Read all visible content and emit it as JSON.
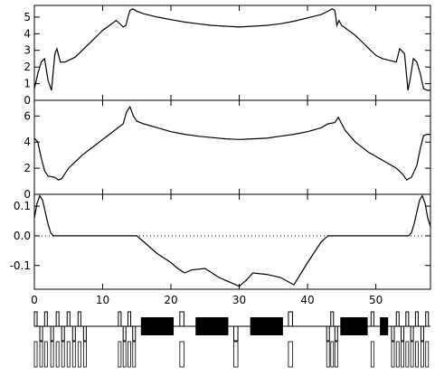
{
  "chart_data": [
    {
      "type": "line",
      "panel": "top",
      "ylim": [
        0,
        5.7
      ],
      "xlim": [
        0,
        58
      ],
      "yticks": [
        0,
        1,
        2,
        3,
        4,
        5
      ],
      "ytick_labels": [
        "0",
        "1",
        "2",
        "3",
        "4",
        "5"
      ],
      "series": [
        {
          "x": [
            0,
            0.5,
            1,
            1.5,
            2,
            2.5,
            3,
            3.3,
            3.8,
            4.5,
            5,
            6,
            7,
            8,
            9,
            10,
            11,
            12,
            13,
            13.4,
            13.7,
            14,
            14.4,
            15,
            16,
            18,
            20,
            22,
            24,
            26,
            28,
            30,
            32,
            34,
            36,
            38,
            40,
            42,
            43,
            43.6,
            44,
            44.3,
            44.6,
            45,
            46,
            47,
            48,
            49,
            50,
            51,
            52,
            53,
            53.5,
            54.2,
            54.7,
            55,
            55.5,
            56,
            56.5,
            57,
            57.5,
            58
          ],
          "y": [
            0.7,
            1.6,
            2.3,
            2.5,
            1.2,
            0.6,
            2.8,
            3.1,
            2.3,
            2.3,
            2.4,
            2.6,
            3.0,
            3.4,
            3.8,
            4.2,
            4.5,
            4.8,
            4.4,
            4.5,
            5.0,
            5.4,
            5.5,
            5.35,
            5.2,
            5.0,
            4.85,
            4.7,
            4.6,
            4.5,
            4.45,
            4.4,
            4.45,
            4.5,
            4.6,
            4.75,
            4.95,
            5.15,
            5.35,
            5.5,
            5.4,
            4.5,
            4.8,
            4.5,
            4.2,
            3.9,
            3.5,
            3.1,
            2.7,
            2.5,
            2.4,
            2.3,
            3.1,
            2.8,
            0.6,
            1.2,
            2.5,
            2.3,
            1.6,
            0.7,
            0.6,
            0.6
          ]
        }
      ]
    },
    {
      "type": "line",
      "panel": "middle",
      "ylim": [
        0,
        7.2
      ],
      "xlim": [
        0,
        58
      ],
      "yticks": [
        0,
        2,
        4,
        6
      ],
      "ytick_labels": [
        "0",
        "2",
        "4",
        "6"
      ],
      "series": [
        {
          "x": [
            0,
            0.5,
            1,
            1.5,
            2,
            3,
            3.5,
            4,
            4.5,
            5,
            6,
            7,
            8,
            9,
            10,
            11,
            12,
            13,
            13.5,
            14,
            14.5,
            15,
            16,
            18,
            20,
            22,
            24,
            26,
            28,
            30,
            32,
            34,
            36,
            38,
            40,
            42,
            43,
            44,
            44.5,
            45,
            45.5,
            47,
            49,
            51,
            53,
            54,
            54.5,
            55.2,
            56,
            56.5,
            57,
            57.5,
            58
          ],
          "y": [
            4.3,
            4.0,
            2.8,
            1.8,
            1.4,
            1.3,
            1.1,
            1.2,
            1.6,
            2.0,
            2.5,
            3.0,
            3.4,
            3.8,
            4.2,
            4.6,
            5.0,
            5.4,
            6.3,
            6.7,
            6.0,
            5.6,
            5.4,
            5.1,
            4.8,
            4.6,
            4.45,
            4.35,
            4.25,
            4.2,
            4.25,
            4.3,
            4.45,
            4.6,
            4.8,
            5.1,
            5.4,
            5.5,
            5.9,
            5.4,
            4.9,
            4.0,
            3.2,
            2.6,
            2.0,
            1.5,
            1.1,
            1.3,
            2.2,
            3.5,
            4.5,
            4.6,
            4.6
          ]
        }
      ]
    },
    {
      "type": "line",
      "panel": "bottom",
      "ylim": [
        -0.18,
        0.14
      ],
      "xlim": [
        0,
        58
      ],
      "yticks": [
        -0.1,
        0,
        0.1
      ],
      "ytick_labels": [
        "-0.1",
        "0.0",
        "0.1"
      ],
      "zero_line": "dotted",
      "series": [
        {
          "x": [
            0,
            0.4,
            0.8,
            1.2,
            1.6,
            2.0,
            2.4,
            2.8,
            3.2,
            5,
            10,
            15,
            18,
            20,
            21,
            22,
            23,
            25,
            27,
            29,
            30,
            31,
            32,
            34,
            36,
            38,
            40,
            42,
            43,
            48,
            53,
            54.8,
            55.2,
            55.6,
            56,
            56.4,
            56.8,
            57.2,
            57.6,
            58
          ],
          "y": [
            0.06,
            0.11,
            0.135,
            0.12,
            0.08,
            0.04,
            0.01,
            0.0,
            0.0,
            0.0,
            0.0,
            0.0,
            -0.06,
            -0.09,
            -0.11,
            -0.125,
            -0.115,
            -0.11,
            -0.14,
            -0.16,
            -0.17,
            -0.15,
            -0.125,
            -0.13,
            -0.14,
            -0.165,
            -0.09,
            -0.02,
            0.0,
            0.0,
            0.0,
            0.0,
            0.01,
            0.04,
            0.08,
            0.12,
            0.135,
            0.11,
            0.06,
            0.03
          ]
        }
      ]
    }
  ],
  "xaxis": {
    "range": [
      0,
      58
    ],
    "ticks": [
      0,
      10,
      20,
      30,
      40,
      50
    ],
    "tick_labels": [
      "0",
      "10",
      "20",
      "30",
      "40",
      "50"
    ]
  },
  "lattice": {
    "beamline_x": [
      0,
      58
    ],
    "dipoles": [
      [
        15.6,
        20.4
      ],
      [
        23.6,
        28.4
      ],
      [
        31.6,
        36.4
      ],
      [
        44.8,
        48.8
      ],
      [
        50.6,
        51.8
      ]
    ],
    "quads": [
      [
        0.0,
        0.4,
        "up"
      ],
      [
        0.8,
        1.2,
        "down"
      ],
      [
        1.5,
        1.9,
        "up"
      ],
      [
        2.4,
        2.8,
        "down"
      ],
      [
        3.2,
        3.6,
        "up"
      ],
      [
        4.0,
        4.4,
        "down"
      ],
      [
        4.8,
        5.2,
        "up"
      ],
      [
        5.6,
        6.0,
        "down"
      ],
      [
        6.4,
        6.8,
        "up"
      ],
      [
        7.2,
        7.6,
        "down"
      ],
      [
        12.3,
        12.7,
        "up"
      ],
      [
        13.0,
        13.4,
        "down"
      ],
      [
        13.7,
        14.1,
        "up"
      ],
      [
        14.4,
        14.8,
        "down"
      ],
      [
        21.3,
        21.9,
        "up"
      ],
      [
        29.2,
        29.8,
        "down"
      ],
      [
        37.2,
        37.8,
        "up"
      ],
      [
        42.8,
        43.2,
        "down"
      ],
      [
        43.4,
        43.8,
        "up"
      ],
      [
        44.0,
        44.4,
        "down"
      ],
      [
        49.3,
        49.7,
        "up"
      ],
      [
        52.3,
        52.7,
        "down"
      ],
      [
        53.0,
        53.4,
        "up"
      ],
      [
        53.7,
        54.1,
        "down"
      ],
      [
        54.4,
        54.8,
        "up"
      ],
      [
        55.1,
        55.5,
        "down"
      ],
      [
        55.8,
        56.2,
        "up"
      ],
      [
        56.6,
        57.0,
        "down"
      ],
      [
        57.3,
        57.7,
        "up"
      ]
    ]
  }
}
